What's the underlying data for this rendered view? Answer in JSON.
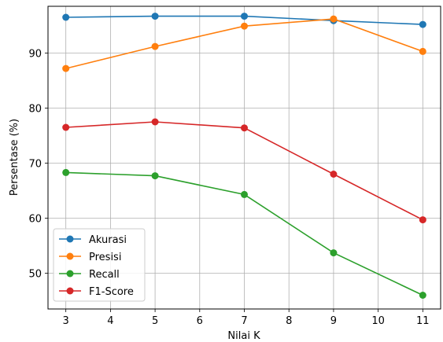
{
  "chart_data": {
    "type": "line",
    "title": "",
    "xlabel": "Nilai K",
    "ylabel": "Persentase (%)",
    "x": [
      3,
      5,
      7,
      9,
      11
    ],
    "xticks": [
      3,
      4,
      5,
      6,
      7,
      8,
      9,
      10,
      11
    ],
    "yticks": [
      50,
      60,
      70,
      80,
      90
    ],
    "xlim": [
      2.6,
      11.4
    ],
    "ylim": [
      43.5,
      98.5
    ],
    "grid": true,
    "legend_position": "lower-left",
    "series": [
      {
        "name": "Akurasi",
        "color": "#1f77b4",
        "values": [
          96.5,
          96.7,
          96.7,
          95.9,
          95.2
        ]
      },
      {
        "name": "Presisi",
        "color": "#ff7f0e",
        "values": [
          87.2,
          91.2,
          94.9,
          96.2,
          90.3
        ]
      },
      {
        "name": "Recall",
        "color": "#2ca02c",
        "values": [
          68.3,
          67.7,
          64.3,
          53.7,
          46.0
        ]
      },
      {
        "name": "F1-Score",
        "color": "#d62728",
        "values": [
          76.5,
          77.5,
          76.4,
          68.0,
          59.7
        ]
      }
    ]
  }
}
